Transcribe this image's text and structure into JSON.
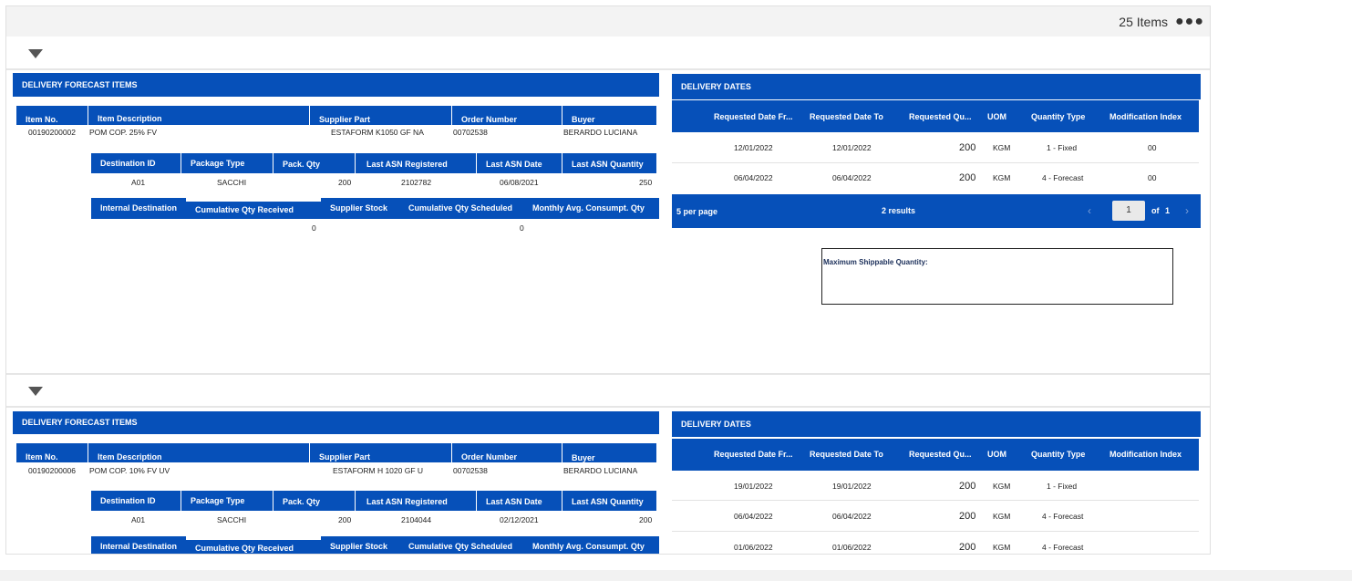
{
  "header": {
    "items_count": "25 Items",
    "more_icon": "more-horizontal-icon"
  },
  "colors": {
    "header_blue": "#0650b9",
    "top_bar": "#f3f3f3"
  },
  "labels": {
    "forecast_title": "DELIVERY FORECAST ITEMS",
    "dates_title": "DELIVERY DATES",
    "item_no": "Item No.",
    "item_description": "Item Description",
    "supplier_part": "Supplier Part",
    "order_number": "Order Number",
    "buyer": "Buyer",
    "destination_id": "Destination ID",
    "package_type": "Package Type",
    "pack_qty": "Pack. Qty",
    "last_asn_registered": "Last ASN Registered",
    "last_asn_date": "Last ASN Date",
    "last_asn_quantity": "Last ASN Quantity",
    "internal_destination": "Internal Destination",
    "cumulative_qty_received": "Cumulative Qty Received",
    "supplier_stock": "Supplier Stock",
    "cumulative_qty_scheduled": "Cumulative Qty Scheduled",
    "monthly_avg_consumpt_qty": "Monthly Avg. Consumpt. Qty",
    "requested_date_from": "Requested Date Fr...",
    "requested_date_to": "Requested Date To",
    "requested_qty": "Requested Qu...",
    "uom": "UOM",
    "quantity_type": "Quantity Type",
    "modification_index": "Modification Index",
    "per_page": "5 per page",
    "of": "of",
    "max_shippable": "Maximum Shippable Quantity:"
  },
  "groups": [
    {
      "item": {
        "item_no": "00190200002",
        "description": "POM COP. 25% FV",
        "supplier_part": "ESTAFORM K1050 GF NA",
        "order_number": "00702538",
        "buyer": "BERARDO LUCIANA"
      },
      "destination": {
        "destination_id": "A01",
        "package_type": "SACCHI",
        "pack_qty": "200",
        "last_asn_registered": "2102782",
        "last_asn_date": "06/08/2021",
        "last_asn_quantity": "250"
      },
      "internal": {
        "cumulative_qty_received": "0",
        "cumulative_qty_scheduled": "0"
      },
      "dates": [
        {
          "from": "12/01/2022",
          "to": "12/01/2022",
          "qty": "200",
          "uom": "KGM",
          "type": "1 - Fixed",
          "mod": "00"
        },
        {
          "from": "06/04/2022",
          "to": "06/04/2022",
          "qty": "200",
          "uom": "KGM",
          "type": "4 - Forecast",
          "mod": "00"
        }
      ],
      "pagination": {
        "results": "2 results",
        "page": "1",
        "total": "1"
      }
    },
    {
      "item": {
        "item_no": "00190200006",
        "description": "POM COP. 10% FV UV",
        "supplier_part": "ESTAFORM H 1020 GF U",
        "order_number": "00702538",
        "buyer": "BERARDO LUCIANA"
      },
      "destination": {
        "destination_id": "A01",
        "package_type": "SACCHI",
        "pack_qty": "200",
        "last_asn_registered": "2104044",
        "last_asn_date": "02/12/2021",
        "last_asn_quantity": "200"
      },
      "dates": [
        {
          "from": "19/01/2022",
          "to": "19/01/2022",
          "qty": "200",
          "uom": "KGM",
          "type": "1 - Fixed"
        },
        {
          "from": "06/04/2022",
          "to": "06/04/2022",
          "qty": "200",
          "uom": "KGM",
          "type": "4 - Forecast"
        },
        {
          "from": "01/06/2022",
          "to": "01/06/2022",
          "qty": "200",
          "uom": "KGM",
          "type": "4 - Forecast"
        }
      ]
    }
  ]
}
